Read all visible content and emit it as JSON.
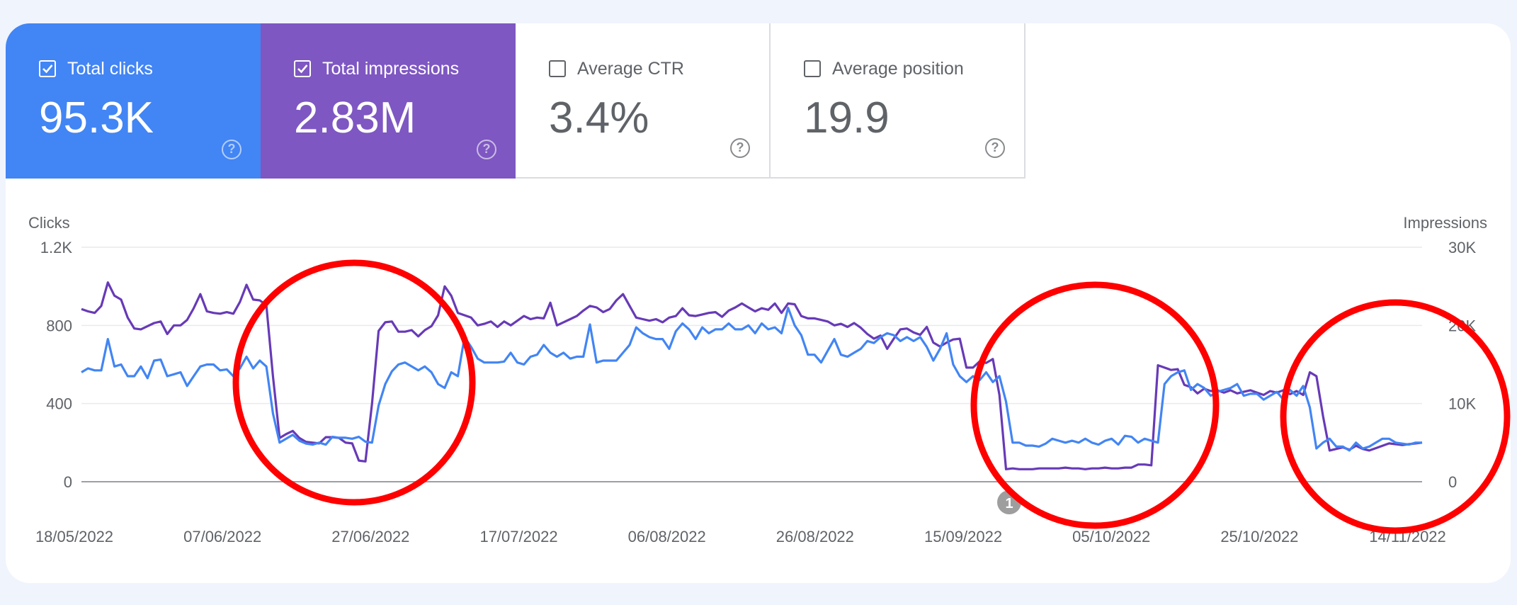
{
  "metrics": [
    {
      "label": "Total clicks",
      "value": "95.3K",
      "checked": true,
      "color": "#4285f4"
    },
    {
      "label": "Total impressions",
      "value": "2.83M",
      "checked": true,
      "color": "#7e57c2"
    },
    {
      "label": "Average CTR",
      "value": "3.4%",
      "checked": false
    },
    {
      "label": "Average position",
      "value": "19.9",
      "checked": false
    }
  ],
  "help_icon": "help-circle-icon",
  "annotation_marker": "1",
  "annotation_color": "#ff0000",
  "chart_data": {
    "type": "line",
    "y_left_label": "Clicks",
    "y_right_label": "Impressions",
    "y_left_ticks": [
      "0",
      "400",
      "800",
      "1.2K"
    ],
    "y_right_ticks": [
      "0",
      "10K",
      "20K",
      "30K"
    ],
    "y_left_range": [
      0,
      1200
    ],
    "y_right_range": [
      0,
      30000
    ],
    "x_ticks": [
      "18/05/2022",
      "07/06/2022",
      "27/06/2022",
      "17/07/2022",
      "06/08/2022",
      "26/08/2022",
      "15/09/2022",
      "05/10/2022",
      "25/10/2022",
      "14/11/2022"
    ],
    "x_range": [
      "18/05/2022",
      "15/11/2022"
    ],
    "grid": true,
    "series": [
      {
        "name": "Total clicks",
        "axis": "left",
        "color": "#4285f4",
        "values": [
          560,
          580,
          570,
          570,
          730,
          590,
          600,
          540,
          540,
          590,
          530,
          620,
          625,
          540,
          550,
          560,
          490,
          540,
          590,
          600,
          600,
          570,
          575,
          540,
          580,
          640,
          580,
          620,
          590,
          350,
          200,
          220,
          240,
          210,
          195,
          190,
          200,
          190,
          230,
          225,
          225,
          220,
          230,
          205,
          200,
          390,
          500,
          565,
          600,
          610,
          590,
          570,
          590,
          560,
          500,
          480,
          560,
          540,
          740,
          690,
          630,
          610,
          610,
          610,
          615,
          660,
          610,
          600,
          640,
          650,
          700,
          660,
          640,
          660,
          630,
          640,
          640,
          805,
          610,
          620,
          620,
          620,
          660,
          700,
          790,
          760,
          740,
          730,
          730,
          680,
          770,
          810,
          780,
          730,
          790,
          760,
          780,
          780,
          810,
          780,
          780,
          800,
          760,
          810,
          780,
          790,
          760,
          890,
          800,
          750,
          650,
          650,
          610,
          670,
          730,
          650,
          640,
          660,
          680,
          720,
          710,
          740,
          760,
          750,
          720,
          740,
          720,
          740,
          690,
          620,
          680,
          760,
          600,
          540,
          510,
          540,
          520,
          560,
          510,
          540,
          410,
          200,
          200,
          185,
          185,
          180,
          195,
          220,
          210,
          200,
          210,
          200,
          220,
          200,
          190,
          210,
          220,
          190,
          235,
          230,
          200,
          220,
          210,
          200,
          500,
          540,
          560,
          570,
          470,
          500,
          480,
          440,
          460,
          470,
          480,
          500,
          440,
          450,
          450,
          420,
          440,
          460,
          420,
          470,
          440,
          490,
          380,
          170,
          200,
          220,
          180,
          180,
          160,
          200,
          170,
          180,
          200,
          220,
          220,
          200,
          195,
          190,
          200,
          200
        ],
        "line_style": "solid"
      },
      {
        "name": "Total impressions",
        "axis": "right",
        "color": "#673ab7",
        "values": [
          22100,
          21800,
          21600,
          22500,
          25500,
          23800,
          23300,
          21000,
          19600,
          19500,
          19900,
          20300,
          20500,
          18900,
          20000,
          20000,
          20700,
          22200,
          24000,
          21800,
          21600,
          21500,
          21700,
          21500,
          23000,
          25200,
          23300,
          23200,
          22600,
          13500,
          5600,
          6100,
          6500,
          5600,
          5100,
          5000,
          4900,
          5700,
          5700,
          5600,
          5000,
          4900,
          2700,
          2600,
          10000,
          19300,
          20400,
          20500,
          19200,
          19200,
          19400,
          18600,
          19400,
          19900,
          21300,
          25000,
          23800,
          21600,
          21300,
          21000,
          20000,
          20200,
          20500,
          19800,
          20500,
          20000,
          20600,
          21200,
          20800,
          21000,
          20900,
          22900,
          20000,
          20400,
          20800,
          21200,
          21900,
          22500,
          22300,
          21700,
          22100,
          23200,
          24000,
          22500,
          21000,
          20800,
          20600,
          20800,
          20400,
          21000,
          21200,
          22200,
          21300,
          21200,
          21400,
          21600,
          21700,
          21100,
          21900,
          22300,
          22800,
          22300,
          21800,
          22200,
          22000,
          22800,
          21600,
          22800,
          22700,
          21200,
          20900,
          20900,
          20700,
          20500,
          20000,
          20200,
          19800,
          20300,
          19700,
          18900,
          18300,
          18700,
          17000,
          18300,
          19500,
          19600,
          19100,
          18800,
          19800,
          17800,
          17300,
          17800,
          18200,
          18300,
          14600,
          14600,
          15400,
          15200,
          15700,
          11100,
          1600,
          1700,
          1600,
          1600,
          1600,
          1700,
          1700,
          1700,
          1700,
          1800,
          1700,
          1700,
          1600,
          1700,
          1700,
          1800,
          1700,
          1700,
          1800,
          1800,
          2200,
          2200,
          2100,
          14900,
          14600,
          14300,
          14400,
          12400,
          12100,
          11300,
          11900,
          11600,
          11700,
          11400,
          11700,
          11300,
          11500,
          11700,
          11400,
          11100,
          11600,
          11400,
          11700,
          11200,
          11600,
          11100,
          14000,
          13500,
          8400,
          4000,
          4200,
          4400,
          4100,
          4600,
          4200,
          4000,
          4300,
          4600,
          4900,
          4800,
          4700,
          4800,
          4900,
          5000
        ],
        "line_style": "solid"
      }
    ]
  }
}
